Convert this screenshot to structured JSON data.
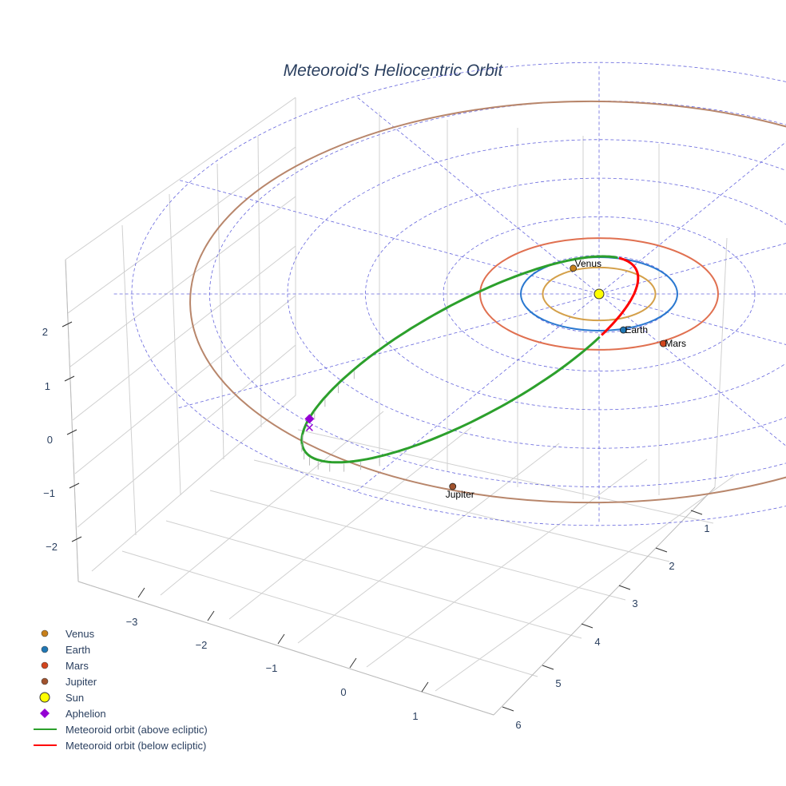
{
  "chart_data": {
    "type": "scatter3d",
    "title": "Meteoroid's Heliocentric Orbit",
    "axes": {
      "x": {
        "ticks": [
          "−3",
          "−2",
          "−1",
          "0",
          "1"
        ]
      },
      "y": {
        "ticks": [
          "1",
          "2",
          "3",
          "4",
          "5",
          "6"
        ]
      },
      "z": {
        "ticks": [
          "2",
          "1",
          "0",
          "−1",
          "−2"
        ]
      }
    },
    "grid": true,
    "legend_position": "bottom-left",
    "colors": {
      "venus": "#c8801a",
      "earth": "#1f77b4",
      "mars": "#d2451e",
      "jupiter": "#a0522d",
      "sun": "#ffff00",
      "aphelion": "#9400d3",
      "above": "#2ca02c",
      "below": "#ff0000",
      "grid": "#6666dd",
      "venus_orbit": "#d4a04a",
      "earth_orbit": "#2a78d0",
      "mars_orbit": "#e07050",
      "jupiter_orbit": "#b8866b"
    },
    "orbits_au": [
      {
        "name": "Venus",
        "r": 0.72,
        "color": "#d4a04a"
      },
      {
        "name": "Earth",
        "r": 1.0,
        "color": "#2a78d0"
      },
      {
        "name": "Mars",
        "r": 1.52,
        "color": "#e07050"
      },
      {
        "name": "Jupiter",
        "r": 5.2,
        "color": "#b8866b"
      }
    ],
    "grid_rings_au": [
      1,
      2,
      3,
      4,
      5,
      6
    ],
    "planets": [
      {
        "name": "Venus",
        "x": -0.33,
        "y": -0.7,
        "color": "#c8801a"
      },
      {
        "name": "Earth",
        "x": 0.31,
        "y": 0.98,
        "color": "#1f77b4"
      },
      {
        "name": "Mars",
        "x": 0.82,
        "y": 1.35,
        "color": "#d2451e"
      },
      {
        "name": "Jupiter",
        "x": -1.87,
        "y": 5.24,
        "color": "#a0522d"
      }
    ],
    "sun": {
      "name": "Sun",
      "x": 0,
      "y": 0
    },
    "aphelion": {
      "name": "Aphelion",
      "x": -3.7,
      "y": 3.4
    },
    "meteoroid_orbit": {
      "center": [
        -1.65,
        1.78
      ],
      "axis_a": [
        2.06,
        -1.63
      ],
      "axis_b": [
        0.61,
        -2.28
      ],
      "below_range_deg": [
        -22,
        45
      ]
    },
    "legend": [
      {
        "label": "Venus",
        "kind": "dot",
        "color": "#c8801a"
      },
      {
        "label": "Earth",
        "kind": "dot",
        "color": "#1f77b4"
      },
      {
        "label": "Mars",
        "kind": "dot",
        "color": "#d2451e"
      },
      {
        "label": "Jupiter",
        "kind": "dot",
        "color": "#a0522d"
      },
      {
        "label": "Sun",
        "kind": "sun",
        "color": "#ffff00"
      },
      {
        "label": "Aphelion",
        "kind": "diamond",
        "color": "#9400d3"
      },
      {
        "label": "Meteoroid orbit (above ecliptic)",
        "kind": "line",
        "color": "#2ca02c"
      },
      {
        "label": "Meteoroid orbit (below ecliptic)",
        "kind": "line",
        "color": "#ff0000"
      }
    ]
  }
}
